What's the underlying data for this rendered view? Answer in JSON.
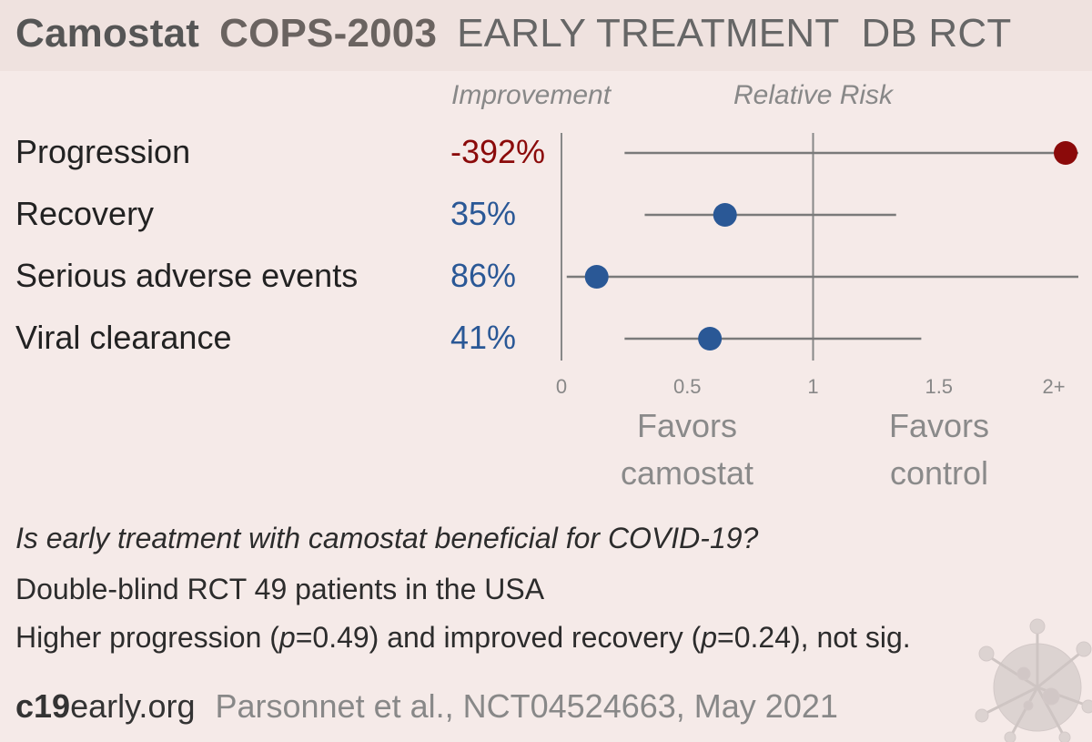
{
  "title": {
    "drug": "Camostat",
    "trial": "COPS-2003",
    "design": "EARLY TREATMENT  DB RCT"
  },
  "column_headers": {
    "improvement": "Improvement",
    "relative_risk": "Relative Risk"
  },
  "rows": [
    {
      "label": "Progression",
      "improvement": "-392%"
    },
    {
      "label": "Recovery",
      "improvement": "35%"
    },
    {
      "label": "Serious adverse events",
      "improvement": "86%"
    },
    {
      "label": "Viral clearance",
      "improvement": "41%"
    }
  ],
  "favors": {
    "left_line1": "Favors",
    "left_line2": "camostat",
    "right_line1": "Favors",
    "right_line2": "control"
  },
  "summary": {
    "question": "Is early treatment with camostat beneficial for COVID-19?",
    "design": "Double-blind RCT 49 patients in the USA",
    "result_part1": "Higher progression (",
    "result_p1_var": "p",
    "result_p1_val": "=0.49) and improved recovery (",
    "result_p2_var": "p",
    "result_p2_val": "=0.24), not sig."
  },
  "footer": {
    "brand_bold": "c19",
    "brand_rest": "early.org",
    "citation": "Parsonnet et al., NCT04524663, May 2021"
  },
  "colors": {
    "harm": "#8b0a0a",
    "benefit": "#2a5896",
    "background": "#f5eae8",
    "header_band": "#efe2df",
    "axis": "#888888",
    "ci_line": "#7a7a7a"
  },
  "chart_data": {
    "type": "forest",
    "title": "",
    "xlabel": "",
    "ylabel": "",
    "xlim": [
      0,
      2
    ],
    "x_ticks": [
      "0",
      "0.5",
      "1",
      "1.5",
      "2+"
    ],
    "x_tick_values": [
      0,
      0.5,
      1,
      1.5,
      2
    ],
    "reference_line": 1,
    "grid": false,
    "series": [
      {
        "name": "Progression",
        "rr": 4.92,
        "ci_low": 0.24,
        "ci_high": 100,
        "improvement": "-392%",
        "color": "#8b0a0a"
      },
      {
        "name": "Recovery",
        "rr": 0.65,
        "ci_low": 0.32,
        "ci_high": 1.33,
        "improvement": "35%",
        "color": "#2a5896"
      },
      {
        "name": "Serious adverse events",
        "rr": 0.14,
        "ci_low": 0.01,
        "ci_high": 2.52,
        "improvement": "86%",
        "color": "#2a5896"
      },
      {
        "name": "Viral clearance",
        "rr": 0.59,
        "ci_low": 0.24,
        "ci_high": 1.43,
        "improvement": "41%",
        "color": "#2a5896"
      }
    ]
  }
}
